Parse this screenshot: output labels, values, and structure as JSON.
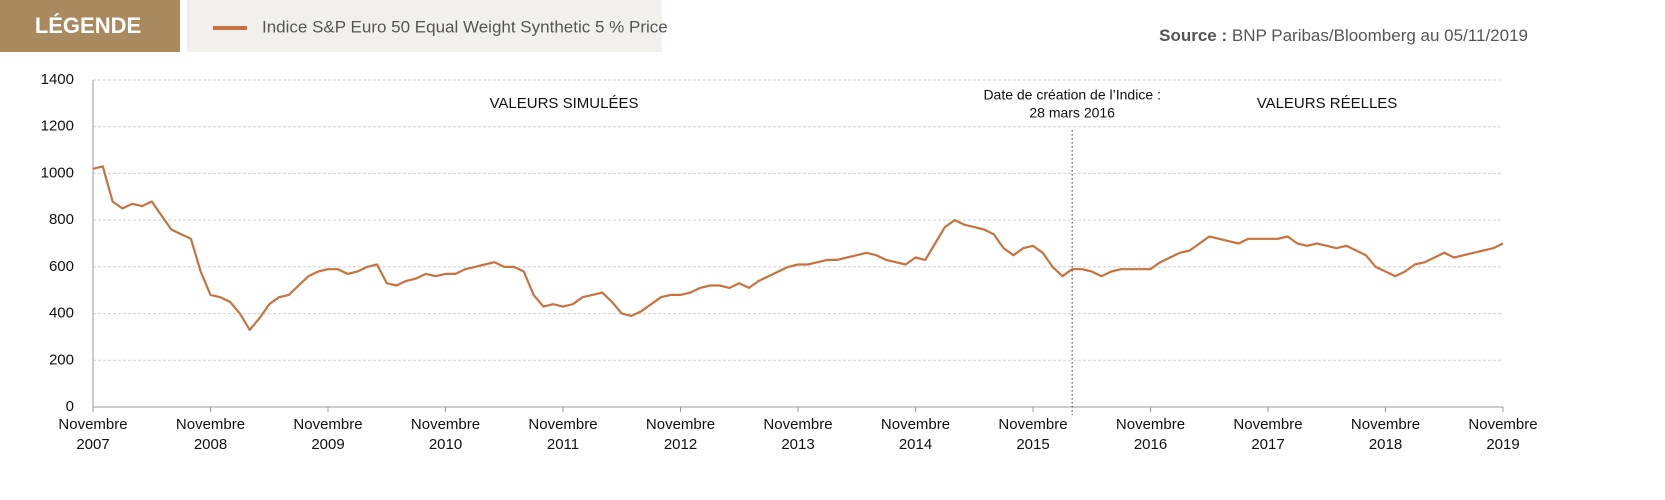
{
  "chart_data": {
    "type": "line",
    "legend_title": "LÉGENDE",
    "source_label": "Source :",
    "source": "BNP Paribas/Bloomberg au 05/11/2019",
    "annotations": [
      {
        "text": "VALEURS SIMULÉES"
      },
      {
        "text": "VALEURS RÉELLES"
      },
      {
        "text": "Date de création de l’Indice :",
        "text2": "28 mars 2016",
        "x": "2016-03"
      }
    ],
    "x": [
      "2007-11",
      "2007-12",
      "2008-01",
      "2008-02",
      "2008-03",
      "2008-04",
      "2008-05",
      "2008-06",
      "2008-07",
      "2008-08",
      "2008-09",
      "2008-10",
      "2008-11",
      "2008-12",
      "2009-01",
      "2009-02",
      "2009-03",
      "2009-04",
      "2009-05",
      "2009-06",
      "2009-07",
      "2009-08",
      "2009-09",
      "2009-10",
      "2009-11",
      "2009-12",
      "2010-01",
      "2010-02",
      "2010-03",
      "2010-04",
      "2010-05",
      "2010-06",
      "2010-07",
      "2010-08",
      "2010-09",
      "2010-10",
      "2010-11",
      "2010-12",
      "2011-01",
      "2011-02",
      "2011-03",
      "2011-04",
      "2011-05",
      "2011-06",
      "2011-07",
      "2011-08",
      "2011-09",
      "2011-10",
      "2011-11",
      "2011-12",
      "2012-01",
      "2012-02",
      "2012-03",
      "2012-04",
      "2012-05",
      "2012-06",
      "2012-07",
      "2012-08",
      "2012-09",
      "2012-10",
      "2012-11",
      "2012-12",
      "2013-01",
      "2013-02",
      "2013-03",
      "2013-04",
      "2013-05",
      "2013-06",
      "2013-07",
      "2013-08",
      "2013-09",
      "2013-10",
      "2013-11",
      "2013-12",
      "2014-01",
      "2014-02",
      "2014-03",
      "2014-04",
      "2014-05",
      "2014-06",
      "2014-07",
      "2014-08",
      "2014-09",
      "2014-10",
      "2014-11",
      "2014-12",
      "2015-01",
      "2015-02",
      "2015-03",
      "2015-04",
      "2015-05",
      "2015-06",
      "2015-07",
      "2015-08",
      "2015-09",
      "2015-10",
      "2015-11",
      "2015-12",
      "2016-01",
      "2016-02",
      "2016-03",
      "2016-04",
      "2016-05",
      "2016-06",
      "2016-07",
      "2016-08",
      "2016-09",
      "2016-10",
      "2016-11",
      "2016-12",
      "2017-01",
      "2017-02",
      "2017-03",
      "2017-04",
      "2017-05",
      "2017-06",
      "2017-07",
      "2017-08",
      "2017-09",
      "2017-10",
      "2017-11",
      "2017-12",
      "2018-01",
      "2018-02",
      "2018-03",
      "2018-04",
      "2018-05",
      "2018-06",
      "2018-07",
      "2018-08",
      "2018-09",
      "2018-10",
      "2018-11",
      "2018-12",
      "2019-01",
      "2019-02",
      "2019-03",
      "2019-04",
      "2019-05",
      "2019-06",
      "2019-07",
      "2019-08",
      "2019-09",
      "2019-10",
      "2019-11"
    ],
    "series": [
      {
        "name": "Indice S&P Euro 50 Equal Weight Synthetic 5 % Price",
        "color": "#c8733f",
        "values": [
          1020,
          1030,
          880,
          850,
          870,
          860,
          880,
          820,
          760,
          740,
          720,
          580,
          480,
          470,
          450,
          400,
          330,
          380,
          440,
          470,
          480,
          520,
          560,
          580,
          590,
          590,
          570,
          580,
          600,
          610,
          530,
          520,
          540,
          550,
          570,
          560,
          570,
          570,
          590,
          600,
          610,
          620,
          600,
          600,
          580,
          480,
          430,
          440,
          430,
          440,
          470,
          480,
          490,
          450,
          400,
          390,
          410,
          440,
          470,
          480,
          480,
          490,
          510,
          520,
          520,
          510,
          530,
          510,
          540,
          560,
          580,
          600,
          610,
          610,
          620,
          630,
          630,
          640,
          650,
          660,
          650,
          630,
          620,
          610,
          640,
          630,
          700,
          770,
          800,
          780,
          770,
          760,
          740,
          680,
          650,
          680,
          690,
          660,
          600,
          560,
          590,
          590,
          580,
          560,
          580,
          590,
          590,
          590,
          590,
          620,
          640,
          660,
          670,
          700,
          730,
          720,
          710,
          700,
          720,
          720,
          720,
          720,
          730,
          700,
          690,
          700,
          690,
          680,
          690,
          670,
          650,
          600,
          580,
          560,
          580,
          610,
          620,
          640,
          660,
          640,
          650,
          660,
          670,
          680,
          700
        ]
      }
    ],
    "xlim": [
      "2007-11",
      "2019-11"
    ],
    "xticks": [
      {
        "value": "2007-11",
        "label": "Novembre 2007"
      },
      {
        "value": "2008-11",
        "label": "Novembre 2008"
      },
      {
        "value": "2009-11",
        "label": "Novembre 2009"
      },
      {
        "value": "2010-11",
        "label": "Novembre 2010"
      },
      {
        "value": "2011-11",
        "label": "Novembre 2011"
      },
      {
        "value": "2012-11",
        "label": "Novembre 2012"
      },
      {
        "value": "2013-11",
        "label": "Novembre 2013"
      },
      {
        "value": "2014-11",
        "label": "Novembre 2014"
      },
      {
        "value": "2015-11",
        "label": "Novembre 2015"
      },
      {
        "value": "2016-11",
        "label": "Novembre 2016"
      },
      {
        "value": "2017-11",
        "label": "Novembre 2017"
      },
      {
        "value": "2018-11",
        "label": "Novembre 2018"
      },
      {
        "value": "2019-11",
        "label": "Novembre 2019"
      }
    ],
    "ylim": [
      0,
      1400
    ],
    "yticks": [
      0,
      200,
      400,
      600,
      800,
      1000,
      1200,
      1400
    ],
    "grid": true
  }
}
